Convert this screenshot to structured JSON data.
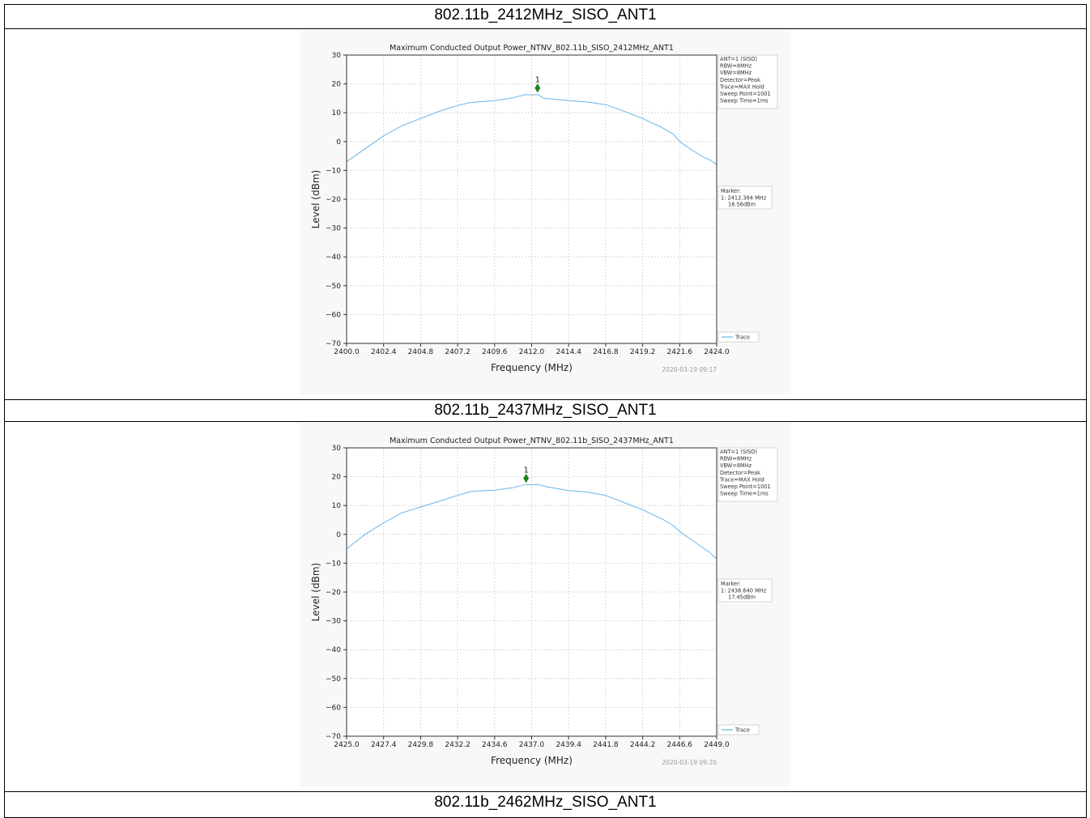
{
  "sections": [
    {
      "heading": "802.11b_2412MHz_SISO_ANT1"
    },
    {
      "heading": "802.11b_2437MHz_SISO_ANT1"
    },
    {
      "heading": "802.11b_2462MHz_SISO_ANT1"
    }
  ],
  "chart_data": [
    {
      "type": "line",
      "title": "Maximum Conducted Output Power_NTNV_802.11b_SISO_2412MHz_ANT1",
      "xlabel": "Frequency (MHz)",
      "ylabel": "Level (dBm)",
      "xlim": [
        2400.0,
        2424.0
      ],
      "ylim": [
        -70,
        30
      ],
      "xticks": [
        "2400.0",
        "2402.4",
        "2404.8",
        "2407.2",
        "2409.6",
        "2412.0",
        "2414.4",
        "2416.8",
        "2419.2",
        "2421.6",
        "2424.0"
      ],
      "yticks": [
        "30",
        "20",
        "10",
        "0",
        "−10",
        "−20",
        "−30",
        "−40",
        "−50",
        "−60",
        "−70"
      ],
      "grid": true,
      "info_lines": [
        "ANT=1 (SISO)",
        "RBW=8MHz",
        "VBW=8MHz",
        "Detector=Peak",
        "Trace=MAX Hold",
        "Sweep Point=1001",
        "Sweep Time=1ms"
      ],
      "marker": {
        "label": "1",
        "x": 2412.384,
        "y": 16.56
      },
      "marker_box": [
        "Marker:",
        "1: 2412.384 MHz",
        "16.56dBm"
      ],
      "legend": "Trace",
      "legend_position": "lower-right-outside",
      "timestamp": "2020-03-19 09:17",
      "series": [
        {
          "name": "Trace",
          "color": "#6cb5e6",
          "x": [
            2400.0,
            2401.2,
            2402.4,
            2403.6,
            2404.8,
            2406.0,
            2407.2,
            2408.0,
            2408.4,
            2409.6,
            2410.8,
            2411.6,
            2412.0,
            2412.4,
            2412.8,
            2414.4,
            2415.6,
            2416.8,
            2418.0,
            2419.2,
            2420.4,
            2421.2,
            2421.6,
            2422.4,
            2423.2,
            2423.6,
            2424.0
          ],
          "y": [
            -7,
            -2.5,
            2,
            5.5,
            8,
            10.5,
            12.5,
            13.5,
            13.7,
            14.2,
            15.2,
            16.3,
            16.2,
            16.3,
            15,
            14.2,
            13.7,
            12.8,
            10.5,
            8,
            5,
            2.5,
            0,
            -3,
            -5.5,
            -6.5,
            -8
          ]
        }
      ]
    },
    {
      "type": "line",
      "title": "Maximum Conducted Output Power_NTNV_802.11b_SISO_2437MHz_ANT1",
      "xlabel": "Frequency (MHz)",
      "ylabel": "Level (dBm)",
      "xlim": [
        2425.0,
        2449.0
      ],
      "ylim": [
        -70,
        30
      ],
      "xticks": [
        "2425.0",
        "2427.4",
        "2429.8",
        "2432.2",
        "2434.6",
        "2437.0",
        "2439.4",
        "2441.8",
        "2444.2",
        "2446.6",
        "2449.0"
      ],
      "yticks": [
        "30",
        "20",
        "10",
        "0",
        "−10",
        "−20",
        "−30",
        "−40",
        "−50",
        "−60",
        "−70"
      ],
      "grid": true,
      "info_lines": [
        "ANT=1 (SISO)",
        "RBW=8MHz",
        "VBW=8MHz",
        "Detector=Peak",
        "Trace=MAX Hold",
        "Sweep Point=1001",
        "Sweep Time=1ms"
      ],
      "marker": {
        "label": "1",
        "x": 2436.64,
        "y": 17.45
      },
      "marker_box": [
        "Marker:",
        "1: 2436.640 MHz",
        "17.45dBm"
      ],
      "legend": "Trace",
      "legend_position": "lower-right-outside",
      "timestamp": "2020-03-19 09:20",
      "series": [
        {
          "name": "Trace",
          "color": "#6cb5e6",
          "x": [
            2425.0,
            2426.2,
            2427.4,
            2428.6,
            2429.8,
            2431.0,
            2432.2,
            2433.0,
            2433.4,
            2434.6,
            2435.8,
            2436.6,
            2437.0,
            2437.4,
            2438.0,
            2439.4,
            2440.6,
            2441.8,
            2443.0,
            2444.2,
            2445.4,
            2446.2,
            2446.6,
            2447.4,
            2448.2,
            2448.6,
            2449.0
          ],
          "y": [
            -5,
            0,
            4,
            7.5,
            9.5,
            11.5,
            13.5,
            14.8,
            15,
            15.3,
            16.2,
            17.3,
            17.2,
            17.3,
            16.5,
            15.2,
            14.7,
            13.5,
            11,
            8.5,
            5.5,
            3,
            1,
            -2,
            -5,
            -6.5,
            -8.5
          ]
        }
      ]
    }
  ]
}
